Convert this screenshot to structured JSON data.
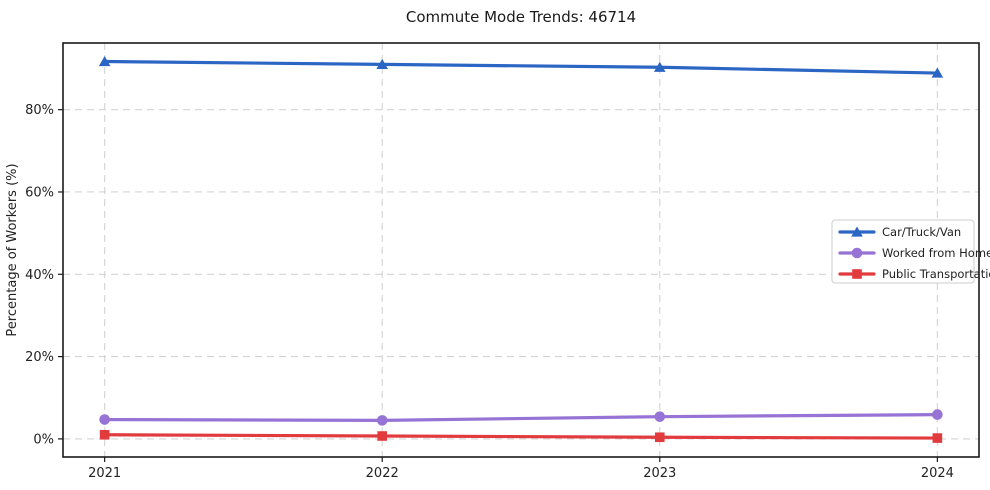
{
  "title": "Commute Mode Trends: 46714",
  "chart_data": {
    "type": "line",
    "title": "Commute Mode Trends: 46714",
    "xlabel": "",
    "ylabel": "Percentage of Workers (%)",
    "x": [
      2021,
      2022,
      2023,
      2024
    ],
    "x_tick_labels": [
      "2021",
      "2022",
      "2023",
      "2024"
    ],
    "y_ticks": [
      0,
      20,
      40,
      60,
      80
    ],
    "y_tick_labels": [
      "0%",
      "20%",
      "40%",
      "60%",
      "80%"
    ],
    "xlim": [
      2020.85,
      2024.15
    ],
    "ylim": [
      -4.4,
      96.2
    ],
    "grid": true,
    "grid_style": "dashed",
    "series": [
      {
        "name": "Car/Truck/Van",
        "values": [
          91.7,
          91.0,
          90.3,
          88.9
        ],
        "color": "#2c66c4",
        "marker": "triangle"
      },
      {
        "name": "Worked from Home",
        "values": [
          4.7,
          4.5,
          5.4,
          5.9
        ],
        "color": "#9673d4",
        "marker": "circle"
      },
      {
        "name": "Public Transportation",
        "values": [
          1.0,
          0.7,
          0.4,
          0.2
        ],
        "color": "#e23b3e",
        "marker": "square"
      }
    ],
    "legend": {
      "position": "center-right",
      "entries": [
        "Car/Truck/Van",
        "Worked from Home",
        "Public Transportation"
      ]
    }
  },
  "colors": {
    "axis_border": "#1a1a1a",
    "grid": "#d4d4d4",
    "tick_text": "#222222",
    "title_text": "#1a1a1a",
    "legend_border": "#cccccc",
    "legend_bg": "#ffffff"
  }
}
